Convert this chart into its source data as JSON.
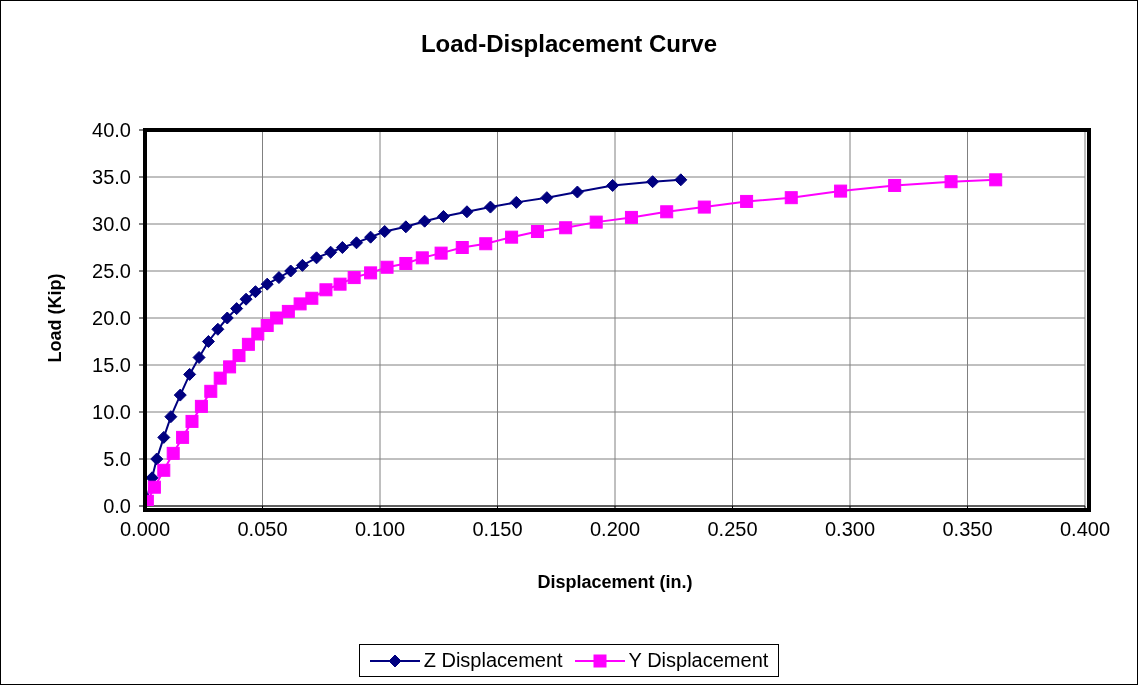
{
  "chart_data": {
    "type": "line",
    "title": "Load-Displacement Curve",
    "xlabel": "Displacement (in.)",
    "ylabel": "Load (Kip)",
    "xlim": [
      0,
      0.4
    ],
    "xticks": [
      {
        "value": 0,
        "label": "0.000"
      },
      {
        "value": 0.05,
        "label": "0.050"
      },
      {
        "value": 0.1,
        "label": "0.100"
      },
      {
        "value": 0.15,
        "label": "0.150"
      },
      {
        "value": 0.2,
        "label": "0.200"
      },
      {
        "value": 0.25,
        "label": "0.250"
      },
      {
        "value": 0.3,
        "label": "0.300"
      },
      {
        "value": 0.35,
        "label": "0.350"
      },
      {
        "value": 0.4,
        "label": "0.400"
      }
    ],
    "ylim": [
      0,
      40
    ],
    "yticks": [
      {
        "value": 0,
        "label": "0.0"
      },
      {
        "value": 5,
        "label": "5.0"
      },
      {
        "value": 10,
        "label": "10.0"
      },
      {
        "value": 15,
        "label": "15.0"
      },
      {
        "value": 20,
        "label": "20.0"
      },
      {
        "value": 25,
        "label": "25.0"
      },
      {
        "value": 30,
        "label": "30.0"
      },
      {
        "value": 35,
        "label": "35.0"
      },
      {
        "value": 40,
        "label": "40.0"
      }
    ],
    "grid": true,
    "legend": "bottom",
    "series": [
      {
        "name": "Z Displacement",
        "color": "#000080",
        "marker": "diamond",
        "x": [
          0.0,
          0.003,
          0.005,
          0.008,
          0.011,
          0.015,
          0.019,
          0.023,
          0.027,
          0.031,
          0.035,
          0.039,
          0.043,
          0.047,
          0.052,
          0.057,
          0.062,
          0.067,
          0.073,
          0.079,
          0.084,
          0.09,
          0.096,
          0.102,
          0.111,
          0.119,
          0.127,
          0.137,
          0.147,
          0.158,
          0.171,
          0.184,
          0.199,
          0.216,
          0.228
        ],
        "values": [
          0.0,
          3.0,
          5.0,
          7.3,
          9.5,
          11.8,
          14.0,
          15.8,
          17.5,
          18.8,
          20.0,
          21.0,
          22.0,
          22.8,
          23.6,
          24.3,
          25.0,
          25.6,
          26.4,
          27.0,
          27.5,
          28.0,
          28.6,
          29.2,
          29.7,
          30.3,
          30.8,
          31.3,
          31.8,
          32.3,
          32.8,
          33.4,
          34.1,
          34.5,
          34.7
        ]
      },
      {
        "name": "Y Displacement",
        "color": "#ff00ff",
        "marker": "square",
        "x": [
          0.0,
          0.001,
          0.004,
          0.008,
          0.012,
          0.016,
          0.02,
          0.024,
          0.028,
          0.032,
          0.036,
          0.04,
          0.044,
          0.048,
          0.052,
          0.056,
          0.061,
          0.066,
          0.071,
          0.077,
          0.083,
          0.089,
          0.096,
          0.103,
          0.111,
          0.118,
          0.126,
          0.135,
          0.145,
          0.156,
          0.167,
          0.179,
          0.192,
          0.207,
          0.222,
          0.238,
          0.256,
          0.275,
          0.296,
          0.319,
          0.343,
          0.362
        ],
        "values": [
          0.0,
          0.5,
          2.0,
          3.8,
          5.6,
          7.3,
          9.0,
          10.6,
          12.2,
          13.6,
          14.8,
          16.0,
          17.2,
          18.3,
          19.2,
          20.0,
          20.7,
          21.5,
          22.1,
          23.0,
          23.6,
          24.3,
          24.8,
          25.4,
          25.8,
          26.4,
          26.9,
          27.5,
          27.9,
          28.6,
          29.2,
          29.6,
          30.2,
          30.7,
          31.3,
          31.8,
          32.4,
          32.8,
          33.5,
          34.1,
          34.5,
          34.7
        ]
      }
    ]
  }
}
